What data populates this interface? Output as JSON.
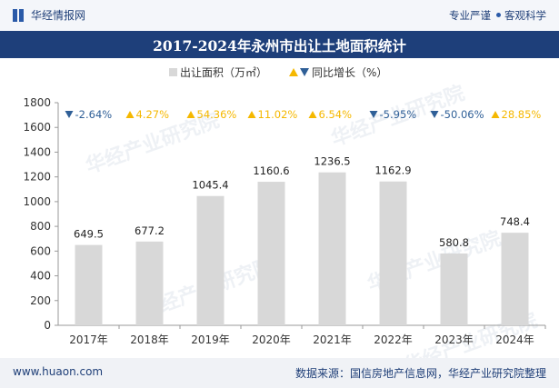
{
  "header": {
    "brand": "华经情报网",
    "tagline_left": "专业严谨",
    "tagline_right": "客观科学"
  },
  "title": "2017-2024年永州市出让土地面积统计",
  "legend": {
    "bar_label": "出让面积（万㎡）",
    "growth_label": "同比增长（%）"
  },
  "footer": {
    "site": "www.huaon.com",
    "source": "数据来源：国信房地产信息网，华经产业研究院整理"
  },
  "watermark": "华经产业研究院",
  "colors": {
    "bar": "#d8d8d8",
    "up": "#f5b800",
    "down": "#2f5f97",
    "title_bg": "#1e3f7a"
  },
  "chart_data": {
    "type": "bar",
    "categories": [
      "2017年",
      "2018年",
      "2019年",
      "2020年",
      "2021年",
      "2022年",
      "2023年",
      "2024年"
    ],
    "series": [
      {
        "name": "出让面积（万㎡）",
        "values": [
          649.5,
          677.2,
          1045.4,
          1160.6,
          1236.5,
          1162.9,
          580.8,
          748.4
        ]
      },
      {
        "name": "同比增长（%）",
        "values": [
          -2.64,
          4.27,
          54.36,
          11.02,
          6.54,
          -5.95,
          -50.06,
          28.85
        ]
      }
    ],
    "value_labels": [
      "649.5",
      "677.2",
      "1045.4",
      "1160.6",
      "1236.5",
      "1162.9",
      "580.8",
      "748.4"
    ],
    "growth_labels": [
      "-2.64%",
      "4.27%",
      "54.36%",
      "11.02%",
      "6.54%",
      "-5.95%",
      "-50.06%",
      "28.85%"
    ],
    "y_ticks": [
      "0",
      "200",
      "400",
      "600",
      "800",
      "1000",
      "1200",
      "1400",
      "1600",
      "1800"
    ],
    "ylim": [
      0,
      1800
    ],
    "grid": false,
    "legend_position": "top-center"
  }
}
